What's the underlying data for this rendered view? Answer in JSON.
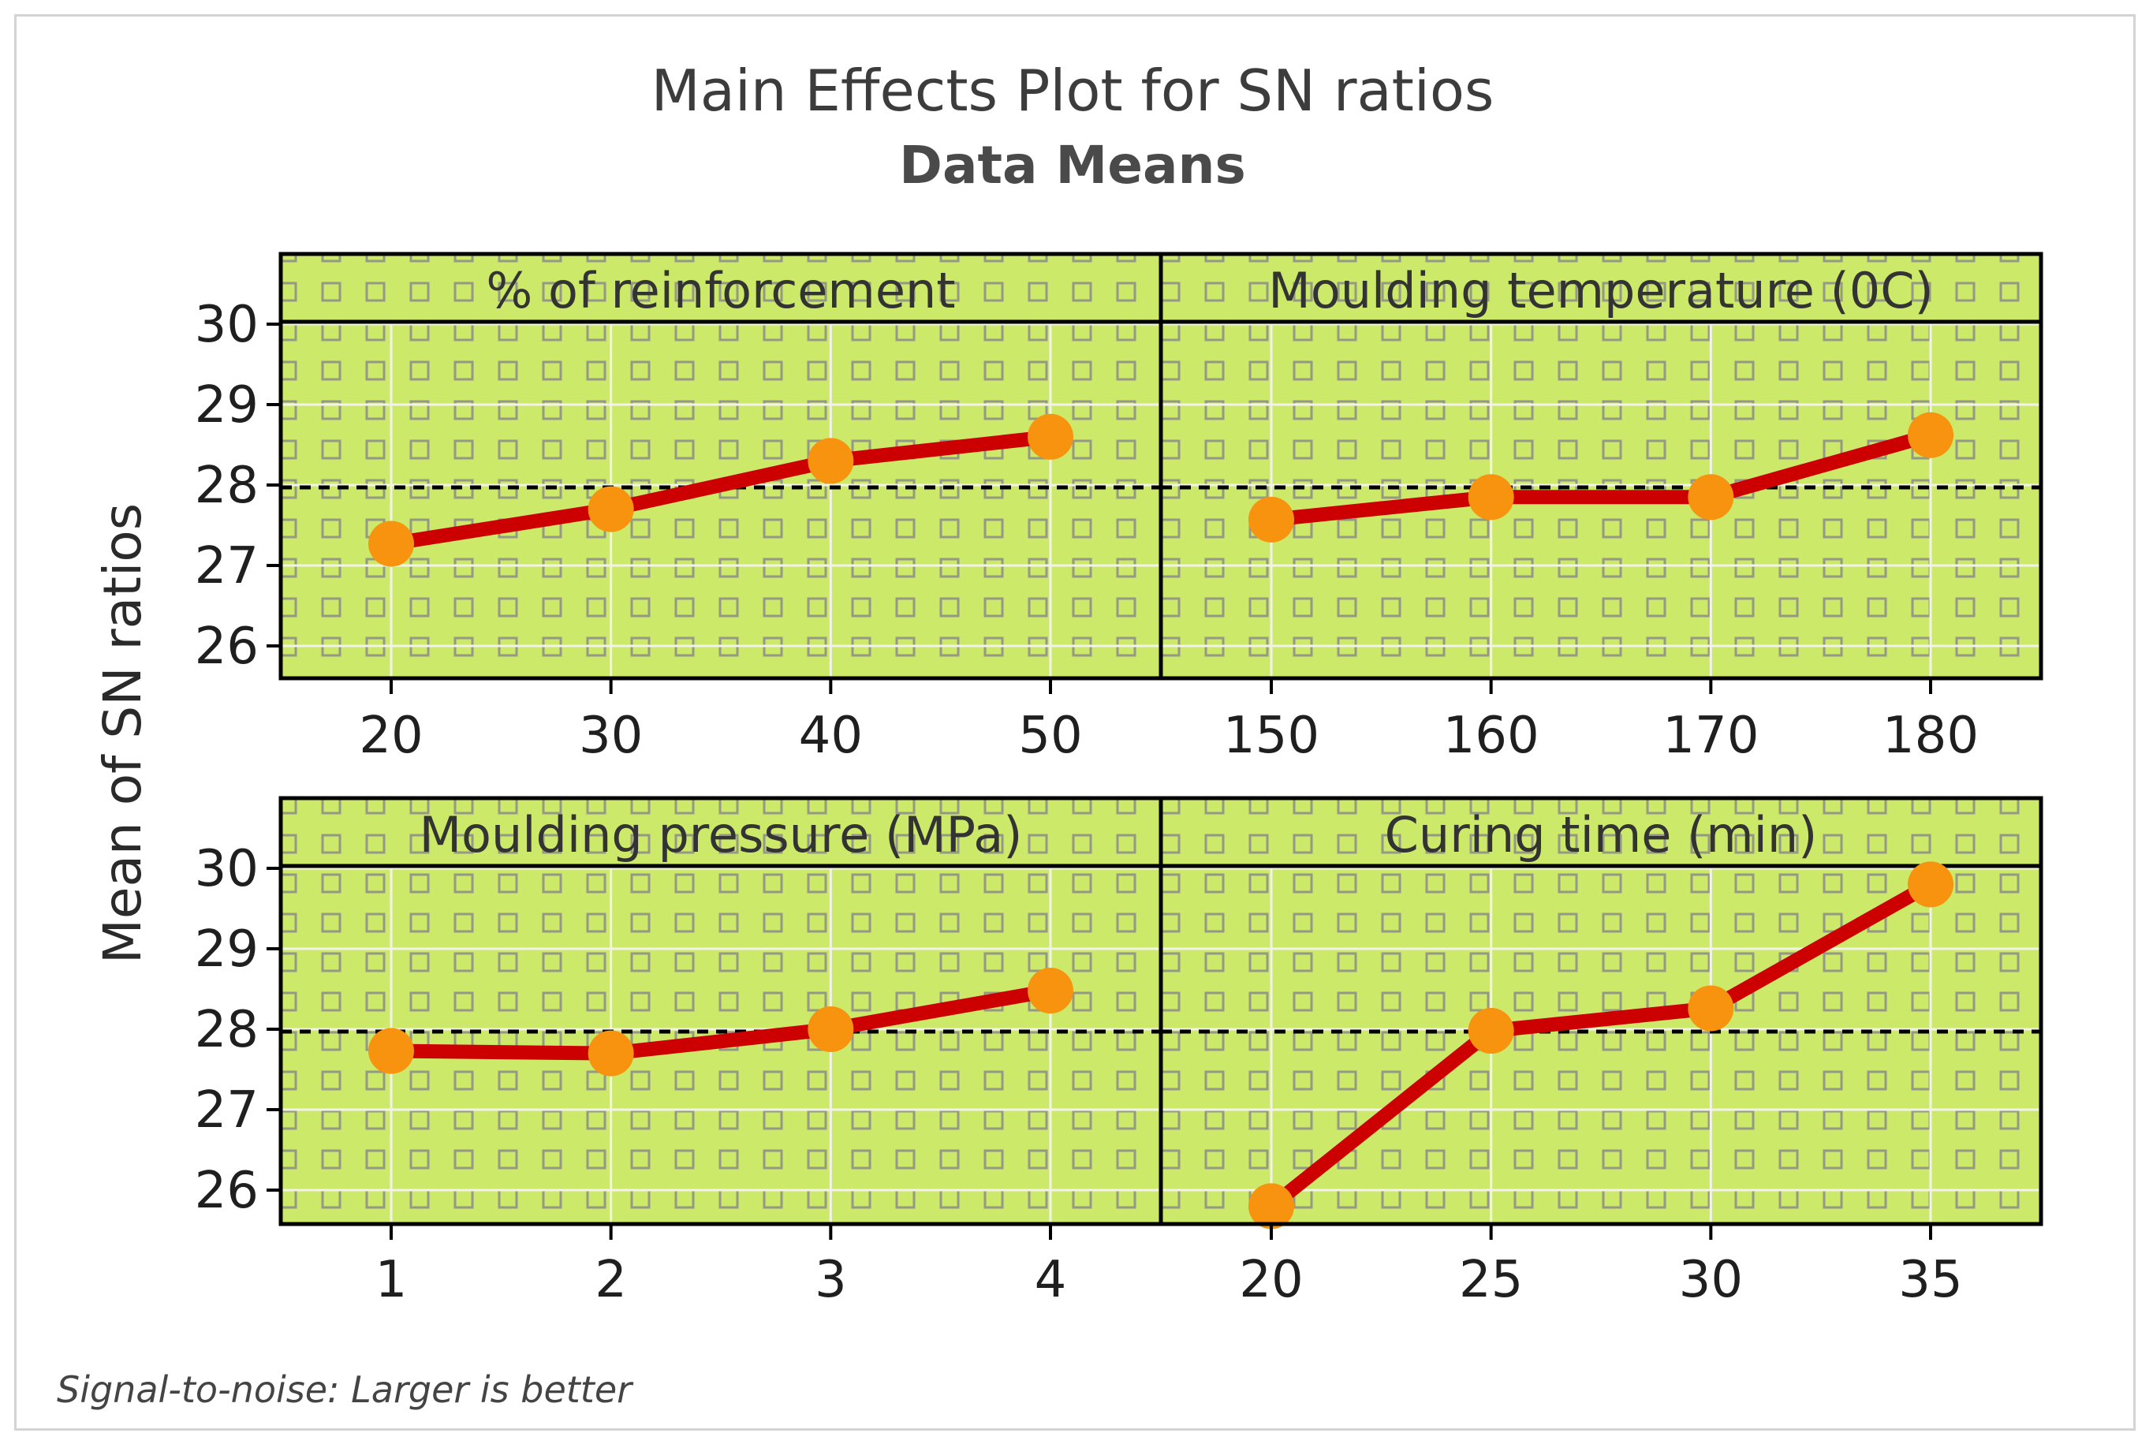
{
  "chart_data": {
    "type": "line",
    "title": "Main Effects Plot for SN ratios",
    "subtitle": "Data Means",
    "ylabel": "Mean of SN ratios",
    "ylim": [
      25.55,
      30.85
    ],
    "yticks": [
      26,
      27,
      28,
      29,
      30
    ],
    "overall_mean": 27.97,
    "footnote": "Signal-to-noise: Larger is better",
    "grid": true,
    "colors": {
      "panel_bg": "#cce96a",
      "line": "#cc0000",
      "marker": "#f7930e",
      "mean_line": "#000000",
      "grid": "#f2f2e8",
      "pattern": "#8a8a8a"
    },
    "panels": [
      {
        "title": "% of reinforcement",
        "categories": [
          "20",
          "30",
          "40",
          "50"
        ],
        "values": [
          27.27,
          27.7,
          28.3,
          28.6
        ]
      },
      {
        "title": "Moulding temperature (0C)",
        "categories": [
          "150",
          "160",
          "170",
          "180"
        ],
        "values": [
          27.57,
          27.85,
          27.85,
          28.62
        ]
      },
      {
        "title": "Moulding pressure (MPa)",
        "categories": [
          "1",
          "2",
          "3",
          "4"
        ],
        "values": [
          27.73,
          27.7,
          28.0,
          28.48
        ]
      },
      {
        "title": "Curing time (min)",
        "categories": [
          "20",
          "25",
          "30",
          "35"
        ],
        "values": [
          25.8,
          27.98,
          28.26,
          29.8
        ]
      }
    ]
  }
}
